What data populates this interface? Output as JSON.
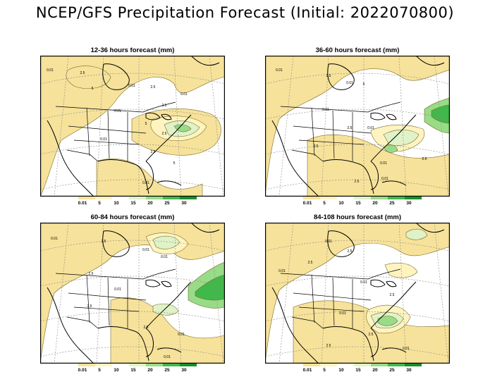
{
  "title": "NCEP/GFS Precipitation Forecast (Initial: 2022070800)",
  "colors": {
    "light": "#fff4c0",
    "tan": "#f6e29a",
    "pale_green": "#dff2c8",
    "mid_green": "#98dc88",
    "green": "#41b84a",
    "dark_green": "#15902a"
  },
  "legend_labels": [
    "0.01",
    "5",
    "10",
    "15",
    "20",
    "25",
    "30"
  ],
  "legend_colors": [
    "#f6e29a",
    "#fff4c0",
    "#ffffff",
    "#dff2c8",
    "#98dc88",
    "#41b84a",
    "#15902a"
  ],
  "panels": [
    {
      "title": "12-36 hours forecast (mm)",
      "contour_labels": [
        "0.01",
        "2.5",
        "5",
        "0.01",
        "2.5",
        "0.01",
        "2.5",
        "0.01",
        "5",
        "2.5",
        "0.01",
        "2.5",
        "5",
        "0.01"
      ]
    },
    {
      "title": "36-60 hours forecast (mm)",
      "contour_labels": [
        "0.01",
        "2.5",
        "0.01",
        "5",
        "0.01",
        "2.5",
        "0.01",
        "2.5",
        "0.01",
        "2.5",
        "2.5",
        "0.01"
      ]
    },
    {
      "title": "60-84 hours forecast (mm)",
      "contour_labels": [
        "0.01",
        "2.5",
        "0.01",
        "0.01",
        "2.5",
        "0.01",
        "2.5",
        "2.5",
        "0.01",
        "0.01"
      ]
    },
    {
      "title": "84-108 hours forecast (mm)",
      "contour_labels": [
        "0.01",
        "2.5",
        "0.01",
        "2.5",
        "0.01",
        "2.5",
        "0.01",
        "2.5",
        "0.01",
        "2.5"
      ]
    }
  ]
}
